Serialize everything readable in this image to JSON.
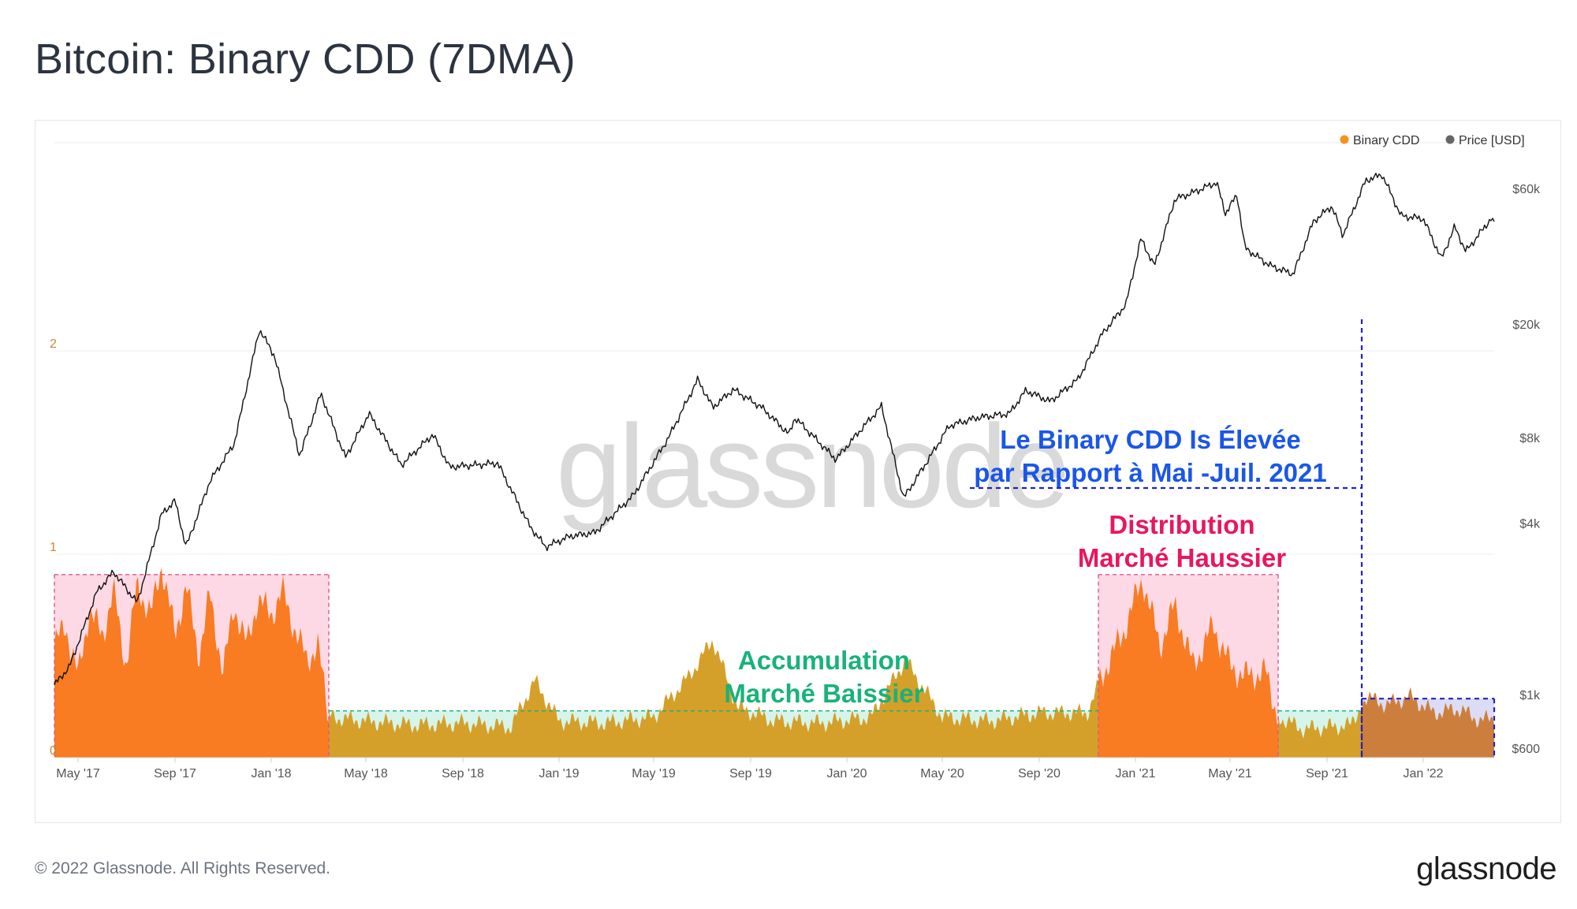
{
  "title": "Bitcoin: Binary CDD (7DMA)",
  "footer": {
    "copyright": "© 2022 Glassnode. All Rights Reserved.",
    "brand": "glassnode"
  },
  "watermark": "glassnode",
  "colors": {
    "binary_cdd_bull": "#f97b22",
    "binary_cdd_bear": "#d4a02a",
    "binary_cdd_recent": "#cc7f3c",
    "price": "#111111",
    "pink_zone": "#fdd9e6",
    "green_zone": "#d6f5ea",
    "blue_zone": "#dcdcf7",
    "pink_edge": "#e0548b",
    "green_edge": "#18b07a",
    "blue_edge": "#2222bb",
    "blue_text": "#1a56e8",
    "red_text": "#e8175d",
    "green_text": "#19b27a"
  },
  "chart_data": {
    "type": "area",
    "legend_position": "top-right",
    "grid": true,
    "legend": [
      {
        "name": "Binary CDD",
        "color": "#f7931a"
      },
      {
        "name": "Price [USD]",
        "color": "#666666"
      }
    ],
    "x_range": [
      "2017-04-01",
      "2022-04-01"
    ],
    "x_ticks": [
      "May '17",
      "Sep '17",
      "Jan '18",
      "May '18",
      "Sep '18",
      "Jan '19",
      "May '19",
      "Sep '19",
      "Jan '20",
      "May '20",
      "Sep '20",
      "Jan '21",
      "May '21",
      "Sep '21",
      "Jan '22"
    ],
    "y_left": {
      "ticks": [
        "0",
        "1",
        "2"
      ],
      "range": [
        0,
        3
      ]
    },
    "y_right": {
      "ticks": [
        "$600",
        "$1k",
        "$4k",
        "$8k",
        "$20k",
        "$60k"
      ],
      "scale": "log"
    },
    "series": [
      {
        "name": "Binary CDD",
        "values": [
          [
            "2017-04-01",
            0.55
          ],
          [
            "2017-04-15",
            0.65
          ],
          [
            "2017-05-01",
            0.4
          ],
          [
            "2017-05-15",
            0.72
          ],
          [
            "2017-06-01",
            0.6
          ],
          [
            "2017-06-15",
            0.82
          ],
          [
            "2017-07-01",
            0.45
          ],
          [
            "2017-07-15",
            0.85
          ],
          [
            "2017-08-01",
            0.7
          ],
          [
            "2017-08-15",
            0.95
          ],
          [
            "2017-09-01",
            0.6
          ],
          [
            "2017-09-15",
            0.85
          ],
          [
            "2017-10-01",
            0.5
          ],
          [
            "2017-10-15",
            0.8
          ],
          [
            "2017-11-01",
            0.42
          ],
          [
            "2017-11-15",
            0.75
          ],
          [
            "2017-12-01",
            0.55
          ],
          [
            "2017-12-15",
            0.78
          ],
          [
            "2018-01-01",
            0.7
          ],
          [
            "2018-01-15",
            0.82
          ],
          [
            "2018-02-01",
            0.62
          ],
          [
            "2018-02-15",
            0.48
          ],
          [
            "2018-03-01",
            0.55
          ],
          [
            "2018-03-15",
            0.2
          ],
          [
            "2018-05-01",
            0.18
          ],
          [
            "2018-07-01",
            0.16
          ],
          [
            "2018-09-01",
            0.17
          ],
          [
            "2018-11-01",
            0.15
          ],
          [
            "2018-12-01",
            0.38
          ],
          [
            "2019-01-01",
            0.18
          ],
          [
            "2019-03-01",
            0.17
          ],
          [
            "2019-05-01",
            0.2
          ],
          [
            "2019-06-15",
            0.4
          ],
          [
            "2019-07-15",
            0.58
          ],
          [
            "2019-08-15",
            0.25
          ],
          [
            "2019-10-01",
            0.18
          ],
          [
            "2019-12-01",
            0.17
          ],
          [
            "2020-02-01",
            0.2
          ],
          [
            "2020-03-15",
            0.48
          ],
          [
            "2020-05-01",
            0.2
          ],
          [
            "2020-07-01",
            0.18
          ],
          [
            "2020-09-01",
            0.22
          ],
          [
            "2020-11-01",
            0.22
          ],
          [
            "2020-11-25",
            0.45
          ],
          [
            "2020-12-15",
            0.6
          ],
          [
            "2021-01-10",
            0.88
          ],
          [
            "2021-02-01",
            0.55
          ],
          [
            "2021-02-20",
            0.75
          ],
          [
            "2021-03-15",
            0.45
          ],
          [
            "2021-04-10",
            0.65
          ],
          [
            "2021-05-01",
            0.45
          ],
          [
            "2021-05-20",
            0.4
          ],
          [
            "2021-06-15",
            0.42
          ],
          [
            "2021-07-01",
            0.2
          ],
          [
            "2021-08-01",
            0.14
          ],
          [
            "2021-09-01",
            0.15
          ],
          [
            "2021-10-01",
            0.16
          ],
          [
            "2021-10-20",
            0.3
          ],
          [
            "2021-11-15",
            0.26
          ],
          [
            "2021-12-15",
            0.3
          ],
          [
            "2022-01-15",
            0.22
          ],
          [
            "2022-02-15",
            0.24
          ],
          [
            "2022-03-15",
            0.18
          ],
          [
            "2022-04-01",
            0.2
          ]
        ]
      },
      {
        "name": "Price [USD]",
        "values": [
          [
            "2017-04-01",
            1080
          ],
          [
            "2017-04-20",
            1250
          ],
          [
            "2017-05-25",
            2300
          ],
          [
            "2017-06-15",
            2700
          ],
          [
            "2017-07-15",
            2100
          ],
          [
            "2017-08-15",
            4300
          ],
          [
            "2017-09-01",
            4800
          ],
          [
            "2017-09-15",
            3300
          ],
          [
            "2017-10-15",
            5600
          ],
          [
            "2017-11-15",
            7600
          ],
          [
            "2017-12-17",
            19200
          ],
          [
            "2018-01-05",
            15500
          ],
          [
            "2018-02-06",
            6900
          ],
          [
            "2018-03-05",
            11400
          ],
          [
            "2018-04-05",
            6800
          ],
          [
            "2018-05-05",
            9700
          ],
          [
            "2018-06-15",
            6400
          ],
          [
            "2018-07-25",
            8200
          ],
          [
            "2018-08-15",
            6300
          ],
          [
            "2018-10-15",
            6500
          ],
          [
            "2018-11-25",
            3900
          ],
          [
            "2018-12-15",
            3300
          ],
          [
            "2019-01-15",
            3600
          ],
          [
            "2019-02-15",
            3700
          ],
          [
            "2019-04-05",
            5000
          ],
          [
            "2019-05-20",
            8000
          ],
          [
            "2019-06-26",
            12800
          ],
          [
            "2019-07-15",
            10200
          ],
          [
            "2019-08-10",
            11800
          ],
          [
            "2019-09-15",
            10200
          ],
          [
            "2019-10-20",
            8200
          ],
          [
            "2019-10-27",
            9400
          ],
          [
            "2019-12-18",
            6700
          ],
          [
            "2020-01-20",
            8600
          ],
          [
            "2020-02-14",
            10300
          ],
          [
            "2020-03-13",
            4900
          ],
          [
            "2020-04-15",
            6800
          ],
          [
            "2020-05-10",
            8800
          ],
          [
            "2020-06-15",
            9400
          ],
          [
            "2020-07-25",
            9700
          ],
          [
            "2020-08-15",
            11700
          ],
          [
            "2020-09-15",
            10700
          ],
          [
            "2020-10-20",
            12800
          ],
          [
            "2020-11-20",
            18500
          ],
          [
            "2020-12-20",
            23500
          ],
          [
            "2021-01-08",
            40000
          ],
          [
            "2021-01-25",
            32000
          ],
          [
            "2021-02-20",
            55000
          ],
          [
            "2021-03-15",
            58000
          ],
          [
            "2021-04-14",
            63000
          ],
          [
            "2021-04-25",
            49000
          ],
          [
            "2021-05-10",
            57000
          ],
          [
            "2021-05-20",
            37000
          ],
          [
            "2021-06-22",
            32000
          ],
          [
            "2021-07-20",
            30000
          ],
          [
            "2021-08-15",
            46000
          ],
          [
            "2021-09-07",
            52000
          ],
          [
            "2021-09-21",
            41000
          ],
          [
            "2021-10-20",
            64000
          ],
          [
            "2021-11-10",
            67000
          ],
          [
            "2021-12-04",
            48000
          ],
          [
            "2022-01-01",
            47000
          ],
          [
            "2022-01-24",
            34000
          ],
          [
            "2022-02-10",
            44000
          ],
          [
            "2022-02-24",
            36000
          ],
          [
            "2022-03-28",
            47000
          ],
          [
            "2022-04-01",
            45000
          ]
        ]
      }
    ],
    "annotations": [
      {
        "text": [
          "Accumulation",
          "Marché Baissier"
        ],
        "color": "#19b27a"
      },
      {
        "text": [
          "Distribution",
          "Marché Haussier"
        ],
        "color": "#e8175d"
      },
      {
        "text": [
          "Le Binary CDD Is Élevée",
          "par Rapport à Mai -Juil. 2021"
        ],
        "color": "#1a56e8"
      }
    ],
    "zones": [
      {
        "kind": "pink",
        "from": "2017-04-01",
        "to": "2018-03-15",
        "level": 0.9
      },
      {
        "kind": "green",
        "from": "2018-03-15",
        "to": "2020-11-15",
        "level": 0.23
      },
      {
        "kind": "pink",
        "from": "2020-11-15",
        "to": "2021-07-01",
        "level": 0.9
      },
      {
        "kind": "green",
        "from": "2021-07-01",
        "to": "2021-10-15",
        "level": 0.23
      },
      {
        "kind": "blue",
        "from": "2021-10-15",
        "to": "2022-04-01",
        "level": 0.29
      }
    ]
  }
}
